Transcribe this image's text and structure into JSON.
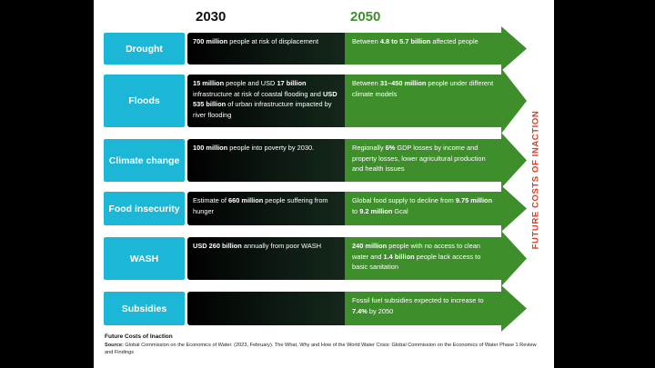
{
  "headers": {
    "col1": "2030",
    "col2": "2050"
  },
  "side_label": "FUTURE COSTS OF INACTION",
  "rows": [
    {
      "label": "Drought",
      "y2030": [
        [
          "b",
          "700 million"
        ],
        [
          "t",
          " people at risk of displacement"
        ]
      ],
      "y2050": [
        [
          "t",
          "Between "
        ],
        [
          "b",
          "4.8 to 5.7 billion"
        ],
        [
          "t",
          " affected people"
        ]
      ]
    },
    {
      "label": "Floods",
      "y2030": [
        [
          "b",
          "15 million"
        ],
        [
          "t",
          " people and USD "
        ],
        [
          "b",
          "17 billion"
        ],
        [
          "t",
          " infrastructure at risk of coastal flooding and "
        ],
        [
          "b",
          "USD 535 billion"
        ],
        [
          "t",
          " of urban infrastructure impacted by river flooding"
        ]
      ],
      "y2050": [
        [
          "t",
          "Between "
        ],
        [
          "b",
          "31–450 million"
        ],
        [
          "t",
          " people under different climate models"
        ]
      ]
    },
    {
      "label": "Climate change",
      "y2030": [
        [
          "b",
          "100 million"
        ],
        [
          "t",
          " people into poverty by 2030."
        ]
      ],
      "y2050": [
        [
          "t",
          "Regionally "
        ],
        [
          "b",
          "6%"
        ],
        [
          "t",
          " GDP losses by income and property losses, lower agricultural production and health issues"
        ]
      ]
    },
    {
      "label": "Food insecurity",
      "y2030": [
        [
          "t",
          "Estimate of "
        ],
        [
          "b",
          "660 million"
        ],
        [
          "t",
          " people suffering from hunger"
        ]
      ],
      "y2050": [
        [
          "t",
          "Global food supply to decline from "
        ],
        [
          "b",
          "9.75 million"
        ],
        [
          "t",
          " to "
        ],
        [
          "b",
          "9.2 million"
        ],
        [
          "t",
          " Gcal"
        ]
      ]
    },
    {
      "label": "WASH",
      "y2030": [
        [
          "b",
          "USD 260 billion"
        ],
        [
          "t",
          " annually from poor WASH"
        ]
      ],
      "y2050": [
        [
          "b",
          "240 million"
        ],
        [
          "t",
          " people with no access to clean water and "
        ],
        [
          "b",
          "1.4 billion"
        ],
        [
          "t",
          " people lack access to basic sanitation"
        ]
      ]
    },
    {
      "label": "Subsidies",
      "y2030": [],
      "y2050": [
        [
          "t",
          "Fossil fuel subsidies expected to increase to "
        ],
        [
          "b",
          "7.4%"
        ],
        [
          "t",
          " by 2050"
        ]
      ]
    }
  ],
  "footer": {
    "title": "Future Costs of Inaction",
    "source_label": "Source:",
    "source_text": " Global Commission on the Economics of Water. (2023, February). The What, Why and How of the World Water Crisis: Global Commission on the Economics of Water Phase 1 Review and Findings"
  },
  "colors": {
    "label_bg": "#1cb6d6",
    "arrow_green": "#3e8e2c",
    "side_label": "#e53923"
  }
}
